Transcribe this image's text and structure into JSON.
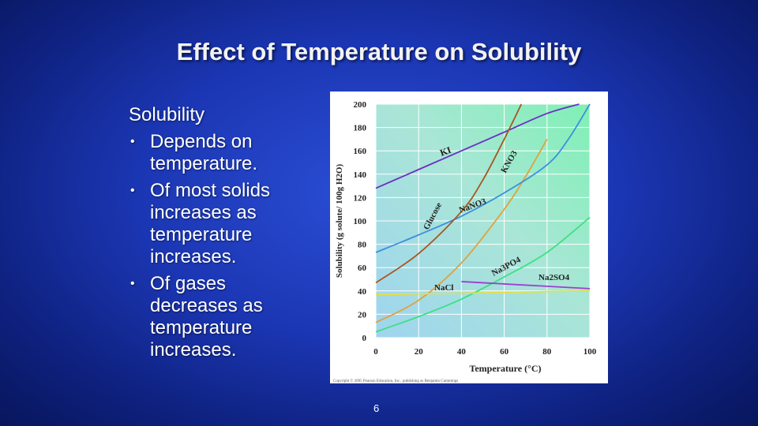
{
  "slide": {
    "title": "Effect of Temperature on Solubility",
    "text_heading": "Solubility",
    "bullets": [
      "Depends on temperature.",
      "Of most solids increases as temperature increases.",
      "Of gases decreases as temperature increases."
    ],
    "page_number": "6"
  },
  "chart_data": {
    "type": "line",
    "xlabel": "Temperature (°C)",
    "ylabel": "Solubility (g solute/ 100g H2O)",
    "xlim": [
      0,
      100
    ],
    "ylim": [
      0,
      200
    ],
    "x_ticks": [
      "0",
      "20",
      "40",
      "60",
      "80",
      "100"
    ],
    "y_ticks": [
      "0",
      "20",
      "40",
      "60",
      "80",
      "100",
      "120",
      "140",
      "160",
      "180",
      "200"
    ],
    "grid": true,
    "copyright": "Copyright © 2005 Pearson Education, Inc., publishing as Benjamin Cummings",
    "series": [
      {
        "name": "KI",
        "color": "#6a2fc4",
        "x": [
          0,
          20,
          40,
          60,
          80,
          95
        ],
        "y": [
          128,
          144,
          160,
          176,
          192,
          200
        ]
      },
      {
        "name": "KNO3",
        "color": "#e0a23c",
        "x": [
          0,
          20,
          40,
          60,
          70,
          80
        ],
        "y": [
          13,
          32,
          64,
          110,
          138,
          170
        ]
      },
      {
        "name": "NaNO3",
        "color": "#3d8fe0",
        "x": [
          0,
          20,
          40,
          60,
          80,
          90,
          100
        ],
        "y": [
          73,
          88,
          104,
          124,
          148,
          170,
          200
        ]
      },
      {
        "name": "Glucose",
        "color": "#a8561f",
        "x": [
          0,
          20,
          40,
          50,
          60,
          68
        ],
        "y": [
          47,
          72,
          108,
          135,
          170,
          200
        ]
      },
      {
        "name": "Na3PO4",
        "color": "#3ee083",
        "x": [
          0,
          20,
          40,
          60,
          80,
          100
        ],
        "y": [
          5,
          18,
          33,
          52,
          73,
          103
        ]
      },
      {
        "name": "Na2SO4",
        "color": "#9b3fd1",
        "x": [
          40,
          60,
          80,
          100
        ],
        "y": [
          48,
          46,
          44,
          42
        ]
      },
      {
        "name": "NaCl",
        "color": "#e6e040",
        "x": [
          0,
          20,
          40,
          60,
          80,
          100
        ],
        "y": [
          37,
          37.5,
          38,
          38.7,
          39.5,
          40
        ]
      }
    ]
  }
}
